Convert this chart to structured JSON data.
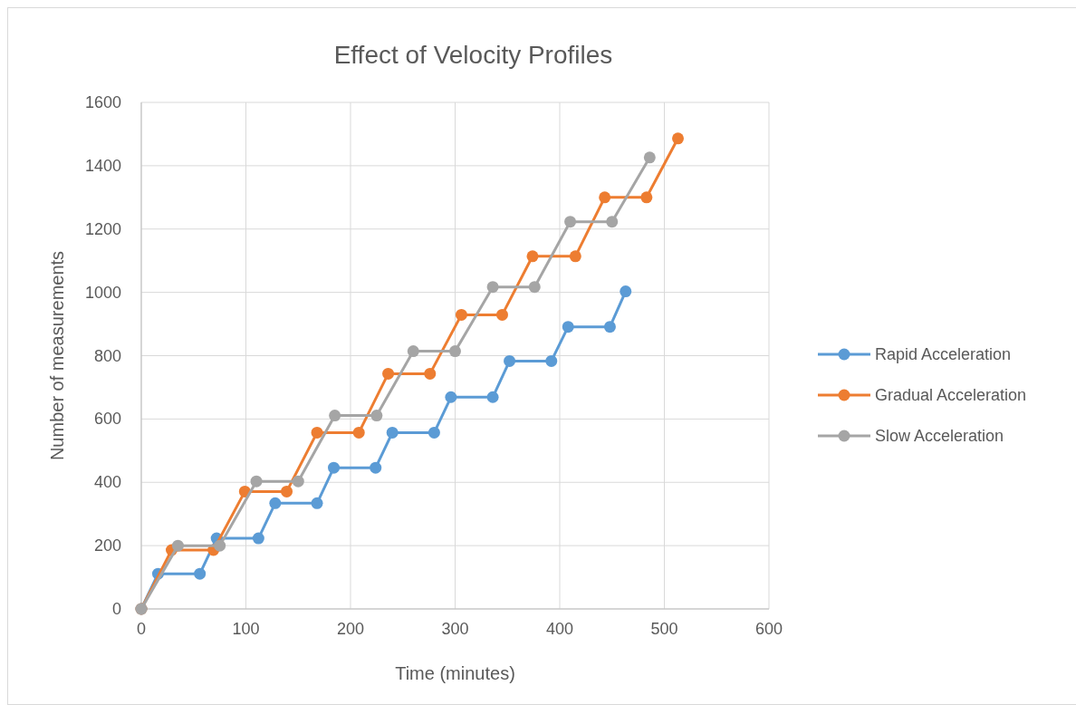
{
  "chart_data": {
    "type": "line",
    "title": "Effect of Velocity Profiles",
    "xlabel": "Time (minutes)",
    "ylabel": "Number of measurements",
    "xlim": [
      0,
      600
    ],
    "xticks": [
      0,
      100,
      200,
      300,
      400,
      500,
      600
    ],
    "ylim": [
      0,
      1600
    ],
    "yticks": [
      0,
      200,
      400,
      600,
      800,
      1000,
      1200,
      1400,
      1600
    ],
    "grid": true,
    "legend": "right",
    "marker": "circle",
    "line_style": "solid",
    "series": [
      {
        "name": "Rapid Acceleration",
        "color": "#5b9bd5",
        "x": [
          0,
          16,
          56,
          72,
          112,
          128,
          168,
          184,
          224,
          240,
          280,
          296,
          336,
          352,
          392,
          408,
          448,
          463
        ],
        "values": [
          0,
          111,
          111,
          223,
          223,
          334,
          334,
          446,
          446,
          557,
          557,
          669,
          669,
          783,
          783,
          891,
          891,
          1003
        ]
      },
      {
        "name": "Gradual Acceleration",
        "color": "#ed7d31",
        "x": [
          0,
          29,
          69,
          99,
          139,
          168,
          208,
          236,
          276,
          306,
          345,
          374,
          415,
          443,
          483,
          513
        ],
        "values": [
          0,
          186,
          186,
          371,
          371,
          557,
          557,
          743,
          743,
          929,
          929,
          1114,
          1114,
          1300,
          1300,
          1486
        ]
      },
      {
        "name": "Slow Acceleration",
        "color": "#a5a5a5",
        "x": [
          0,
          35,
          75,
          110,
          150,
          185,
          225,
          260,
          300,
          336,
          376,
          410,
          450,
          486
        ],
        "values": [
          0,
          200,
          200,
          403,
          403,
          611,
          611,
          814,
          814,
          1017,
          1017,
          1223,
          1223,
          1426
        ]
      }
    ]
  }
}
